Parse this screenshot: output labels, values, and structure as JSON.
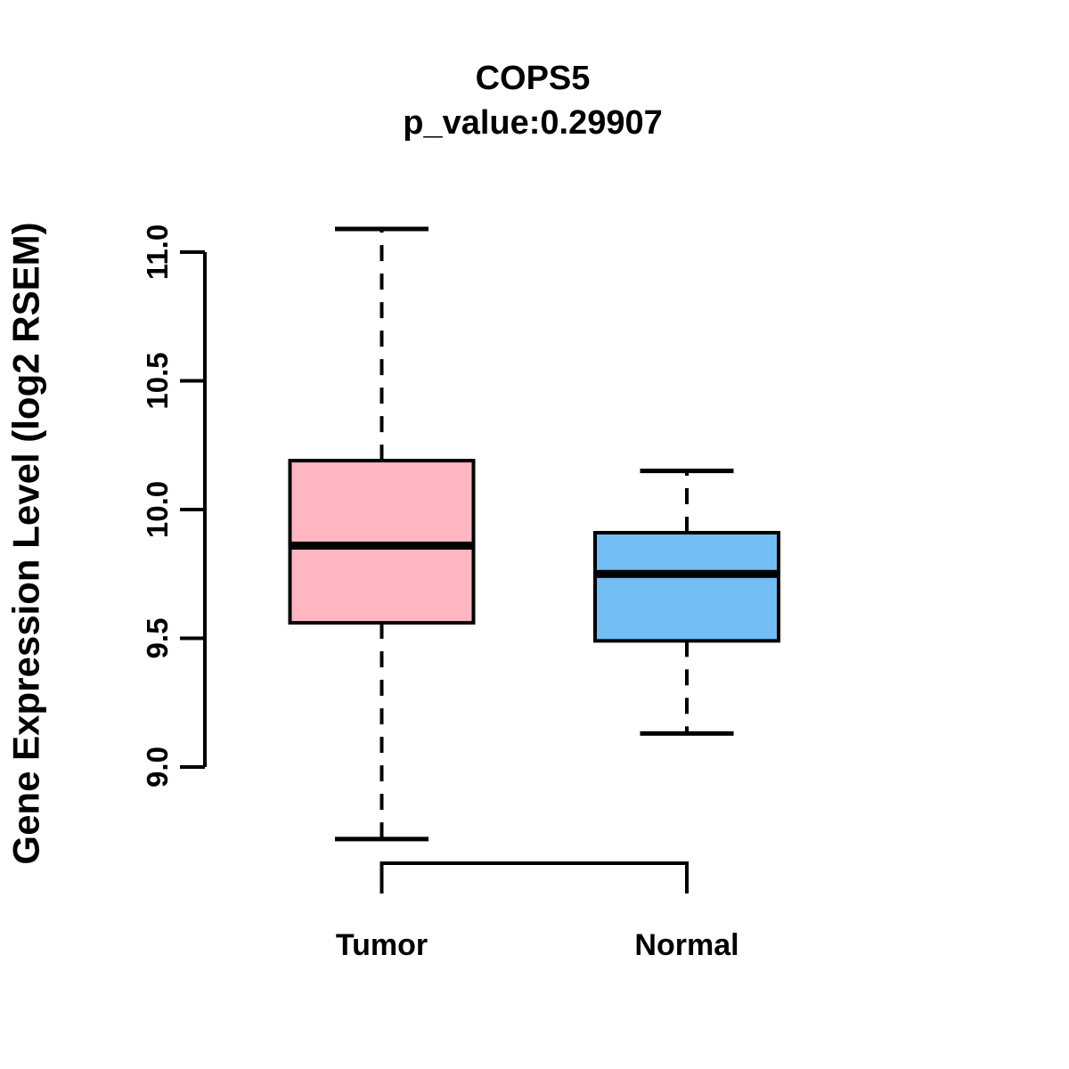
{
  "chart_data": {
    "type": "box",
    "title": "COPS5",
    "subtitle": "p_value:0.29907",
    "ylabel": "Gene Expression Level (log2 RSEM)",
    "xlabel": "",
    "categories": [
      "Tumor",
      "Normal"
    ],
    "yticks": [
      9.0,
      9.5,
      10.0,
      10.5,
      11.0
    ],
    "ytick_labels": [
      "9.0",
      "9.5",
      "10.0",
      "10.5",
      "11.0"
    ],
    "ylim": [
      8.6,
      11.2
    ],
    "grid": "off",
    "legend": "none",
    "axis_color": "#000000",
    "background_color": "#FFFFFF",
    "series": [
      {
        "name": "Tumor",
        "color": "#FFB6C1",
        "lower_whisker": 8.72,
        "q1": 9.56,
        "median": 9.86,
        "q3": 10.19,
        "upper_whisker": 11.09
      },
      {
        "name": "Normal",
        "color": "#72BEF4",
        "lower_whisker": 9.13,
        "q1": 9.49,
        "median": 9.75,
        "q3": 9.91,
        "upper_whisker": 10.15
      }
    ],
    "comparison_bracket": {
      "from": "Tumor",
      "to": "Normal"
    }
  }
}
